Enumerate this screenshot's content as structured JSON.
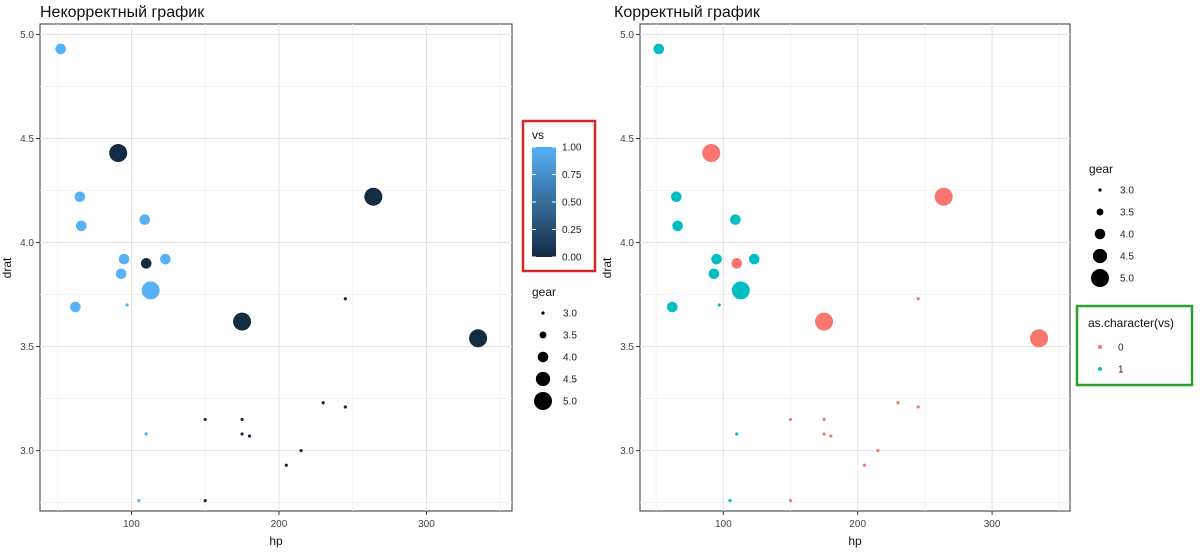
{
  "chart_data": [
    {
      "type": "scatter",
      "title": "Некорректный график",
      "xlabel": "hp",
      "ylabel": "drat",
      "xlim": [
        38,
        358
      ],
      "ylim": [
        2.71,
        5.05
      ],
      "xticks": [
        "100",
        "200",
        "300"
      ],
      "xtick_values": [
        100,
        200,
        300
      ],
      "yticks": [
        "3.0",
        "3.5",
        "4.0",
        "4.5",
        "5.0"
      ],
      "ytick_values": [
        3.0,
        3.5,
        4.0,
        4.5,
        5.0
      ],
      "grid": true,
      "color_mapping": "continuous",
      "color_legend": {
        "title": "vs",
        "labels": [
          "1.00",
          "0.75",
          "0.50",
          "0.25",
          "0.00"
        ],
        "values": [
          1.0,
          0.75,
          0.5,
          0.25,
          0.0
        ],
        "low_color": "#132B43",
        "high_color": "#56B1F7",
        "highlight_color": "#d62728"
      },
      "size_legend": {
        "title": "gear",
        "labels": [
          "3.0",
          "3.5",
          "4.0",
          "4.5",
          "5.0"
        ],
        "values": [
          3.0,
          3.5,
          4.0,
          4.5,
          5.0
        ]
      },
      "points": [
        {
          "hp": 52,
          "drat": 4.93,
          "vs": 1,
          "gear": 4
        },
        {
          "hp": 65,
          "drat": 4.22,
          "vs": 1,
          "gear": 4
        },
        {
          "hp": 66,
          "drat": 4.08,
          "vs": 1,
          "gear": 4
        },
        {
          "hp": 62,
          "drat": 3.69,
          "vs": 1,
          "gear": 4
        },
        {
          "hp": 91,
          "drat": 4.43,
          "vs": 0,
          "gear": 5
        },
        {
          "hp": 93,
          "drat": 3.85,
          "vs": 1,
          "gear": 4
        },
        {
          "hp": 95,
          "drat": 3.92,
          "vs": 1,
          "gear": 4
        },
        {
          "hp": 97,
          "drat": 3.7,
          "vs": 1,
          "gear": 3
        },
        {
          "hp": 105,
          "drat": 2.76,
          "vs": 1,
          "gear": 3
        },
        {
          "hp": 109,
          "drat": 4.11,
          "vs": 1,
          "gear": 4
        },
        {
          "hp": 110,
          "drat": 3.9,
          "vs": 0,
          "gear": 4
        },
        {
          "hp": 110,
          "drat": 3.08,
          "vs": 1,
          "gear": 3
        },
        {
          "hp": 113,
          "drat": 3.77,
          "vs": 1,
          "gear": 5
        },
        {
          "hp": 123,
          "drat": 3.92,
          "vs": 1,
          "gear": 4
        },
        {
          "hp": 150,
          "drat": 3.15,
          "vs": 0,
          "gear": 3
        },
        {
          "hp": 150,
          "drat": 2.76,
          "vs": 0,
          "gear": 3
        },
        {
          "hp": 175,
          "drat": 3.15,
          "vs": 0,
          "gear": 3
        },
        {
          "hp": 175,
          "drat": 3.08,
          "vs": 0,
          "gear": 3
        },
        {
          "hp": 175,
          "drat": 3.62,
          "vs": 0,
          "gear": 5
        },
        {
          "hp": 180,
          "drat": 3.07,
          "vs": 0,
          "gear": 3
        },
        {
          "hp": 205,
          "drat": 2.93,
          "vs": 0,
          "gear": 3
        },
        {
          "hp": 215,
          "drat": 3.0,
          "vs": 0,
          "gear": 3
        },
        {
          "hp": 230,
          "drat": 3.23,
          "vs": 0,
          "gear": 3
        },
        {
          "hp": 245,
          "drat": 3.73,
          "vs": 0,
          "gear": 3
        },
        {
          "hp": 245,
          "drat": 3.21,
          "vs": 0,
          "gear": 3
        },
        {
          "hp": 264,
          "drat": 4.22,
          "vs": 0,
          "gear": 5
        },
        {
          "hp": 335,
          "drat": 3.54,
          "vs": 0,
          "gear": 5
        }
      ]
    },
    {
      "type": "scatter",
      "title": "Корректный график",
      "xlabel": "hp",
      "ylabel": "drat",
      "xlim": [
        38,
        358
      ],
      "ylim": [
        2.71,
        5.05
      ],
      "xticks": [
        "100",
        "200",
        "300"
      ],
      "xtick_values": [
        100,
        200,
        300
      ],
      "yticks": [
        "3.0",
        "3.5",
        "4.0",
        "4.5",
        "5.0"
      ],
      "ytick_values": [
        3.0,
        3.5,
        4.0,
        4.5,
        5.0
      ],
      "grid": true,
      "color_mapping": "discrete",
      "size_legend": {
        "title": "gear",
        "labels": [
          "3.0",
          "3.5",
          "4.0",
          "4.5",
          "5.0"
        ],
        "values": [
          3.0,
          3.5,
          4.0,
          4.5,
          5.0
        ]
      },
      "color_legend": {
        "title": "as.character(vs)",
        "labels": [
          "0",
          "1"
        ],
        "colors": [
          "#F8766D",
          "#00BFC4"
        ],
        "highlight_color": "#2ca02c"
      },
      "points": [
        {
          "hp": 52,
          "drat": 4.93,
          "vs": 1,
          "gear": 4
        },
        {
          "hp": 65,
          "drat": 4.22,
          "vs": 1,
          "gear": 4
        },
        {
          "hp": 66,
          "drat": 4.08,
          "vs": 1,
          "gear": 4
        },
        {
          "hp": 62,
          "drat": 3.69,
          "vs": 1,
          "gear": 4
        },
        {
          "hp": 91,
          "drat": 4.43,
          "vs": 0,
          "gear": 5
        },
        {
          "hp": 93,
          "drat": 3.85,
          "vs": 1,
          "gear": 4
        },
        {
          "hp": 95,
          "drat": 3.92,
          "vs": 1,
          "gear": 4
        },
        {
          "hp": 97,
          "drat": 3.7,
          "vs": 1,
          "gear": 3
        },
        {
          "hp": 105,
          "drat": 2.76,
          "vs": 1,
          "gear": 3
        },
        {
          "hp": 109,
          "drat": 4.11,
          "vs": 1,
          "gear": 4
        },
        {
          "hp": 110,
          "drat": 3.9,
          "vs": 0,
          "gear": 4
        },
        {
          "hp": 110,
          "drat": 3.08,
          "vs": 1,
          "gear": 3
        },
        {
          "hp": 113,
          "drat": 3.77,
          "vs": 1,
          "gear": 5
        },
        {
          "hp": 123,
          "drat": 3.92,
          "vs": 1,
          "gear": 4
        },
        {
          "hp": 150,
          "drat": 3.15,
          "vs": 0,
          "gear": 3
        },
        {
          "hp": 150,
          "drat": 2.76,
          "vs": 0,
          "gear": 3
        },
        {
          "hp": 175,
          "drat": 3.15,
          "vs": 0,
          "gear": 3
        },
        {
          "hp": 175,
          "drat": 3.08,
          "vs": 0,
          "gear": 3
        },
        {
          "hp": 175,
          "drat": 3.62,
          "vs": 0,
          "gear": 5
        },
        {
          "hp": 180,
          "drat": 3.07,
          "vs": 0,
          "gear": 3
        },
        {
          "hp": 205,
          "drat": 2.93,
          "vs": 0,
          "gear": 3
        },
        {
          "hp": 215,
          "drat": 3.0,
          "vs": 0,
          "gear": 3
        },
        {
          "hp": 230,
          "drat": 3.23,
          "vs": 0,
          "gear": 3
        },
        {
          "hp": 245,
          "drat": 3.73,
          "vs": 0,
          "gear": 3
        },
        {
          "hp": 245,
          "drat": 3.21,
          "vs": 0,
          "gear": 3
        },
        {
          "hp": 264,
          "drat": 4.22,
          "vs": 0,
          "gear": 5
        },
        {
          "hp": 335,
          "drat": 3.54,
          "vs": 0,
          "gear": 5
        }
      ]
    }
  ]
}
